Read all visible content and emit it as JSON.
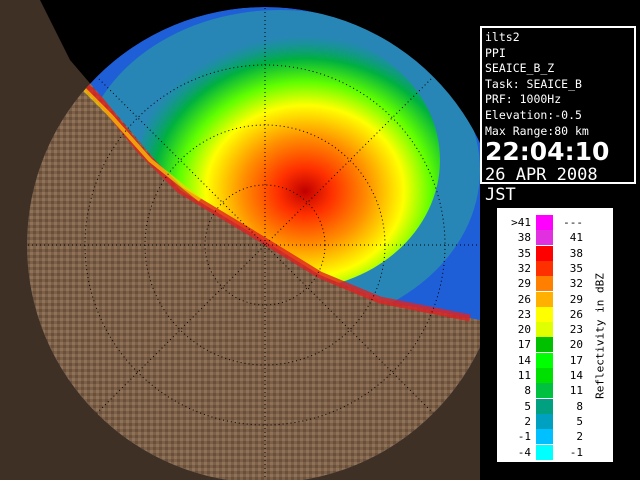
{
  "info": {
    "lines": [
      "ilts2",
      "PPI",
      "SEAICE_B_Z",
      "Task: SEAICE_B",
      "PRF: 1000Hz",
      "Elevation:-0.5",
      "Max Range:80 km"
    ],
    "time": "22:04:10",
    "date": "26 APR 2008 JST"
  },
  "legend": {
    "title": "Reflectivity in dBZ",
    "rows": [
      {
        "low": ">41",
        "high": "---",
        "color": "#ff00ff"
      },
      {
        "low": "38",
        "high": "41",
        "color": "#e030e0"
      },
      {
        "low": "35",
        "high": "38",
        "color": "#ff0000"
      },
      {
        "low": "32",
        "high": "35",
        "color": "#ff3000"
      },
      {
        "low": "29",
        "high": "32",
        "color": "#ff8000"
      },
      {
        "low": "26",
        "high": "29",
        "color": "#ffb000"
      },
      {
        "low": "23",
        "high": "26",
        "color": "#ffff00"
      },
      {
        "low": "20",
        "high": "23",
        "color": "#e0ff00"
      },
      {
        "low": "17",
        "high": "20",
        "color": "#00c000"
      },
      {
        "low": "14",
        "high": "17",
        "color": "#00ff00"
      },
      {
        "low": "11",
        "high": "14",
        "color": "#00e000"
      },
      {
        "low": "8",
        "high": "11",
        "color": "#00c040"
      },
      {
        "low": "5",
        "high": "8",
        "color": "#00a080"
      },
      {
        "low": "2",
        "high": "5",
        "color": "#00a0c0"
      },
      {
        "low": "-1",
        "high": "2",
        "color": "#00c0ff"
      },
      {
        "low": "-4",
        "high": "-1",
        "color": "#00ffff"
      }
    ]
  }
}
